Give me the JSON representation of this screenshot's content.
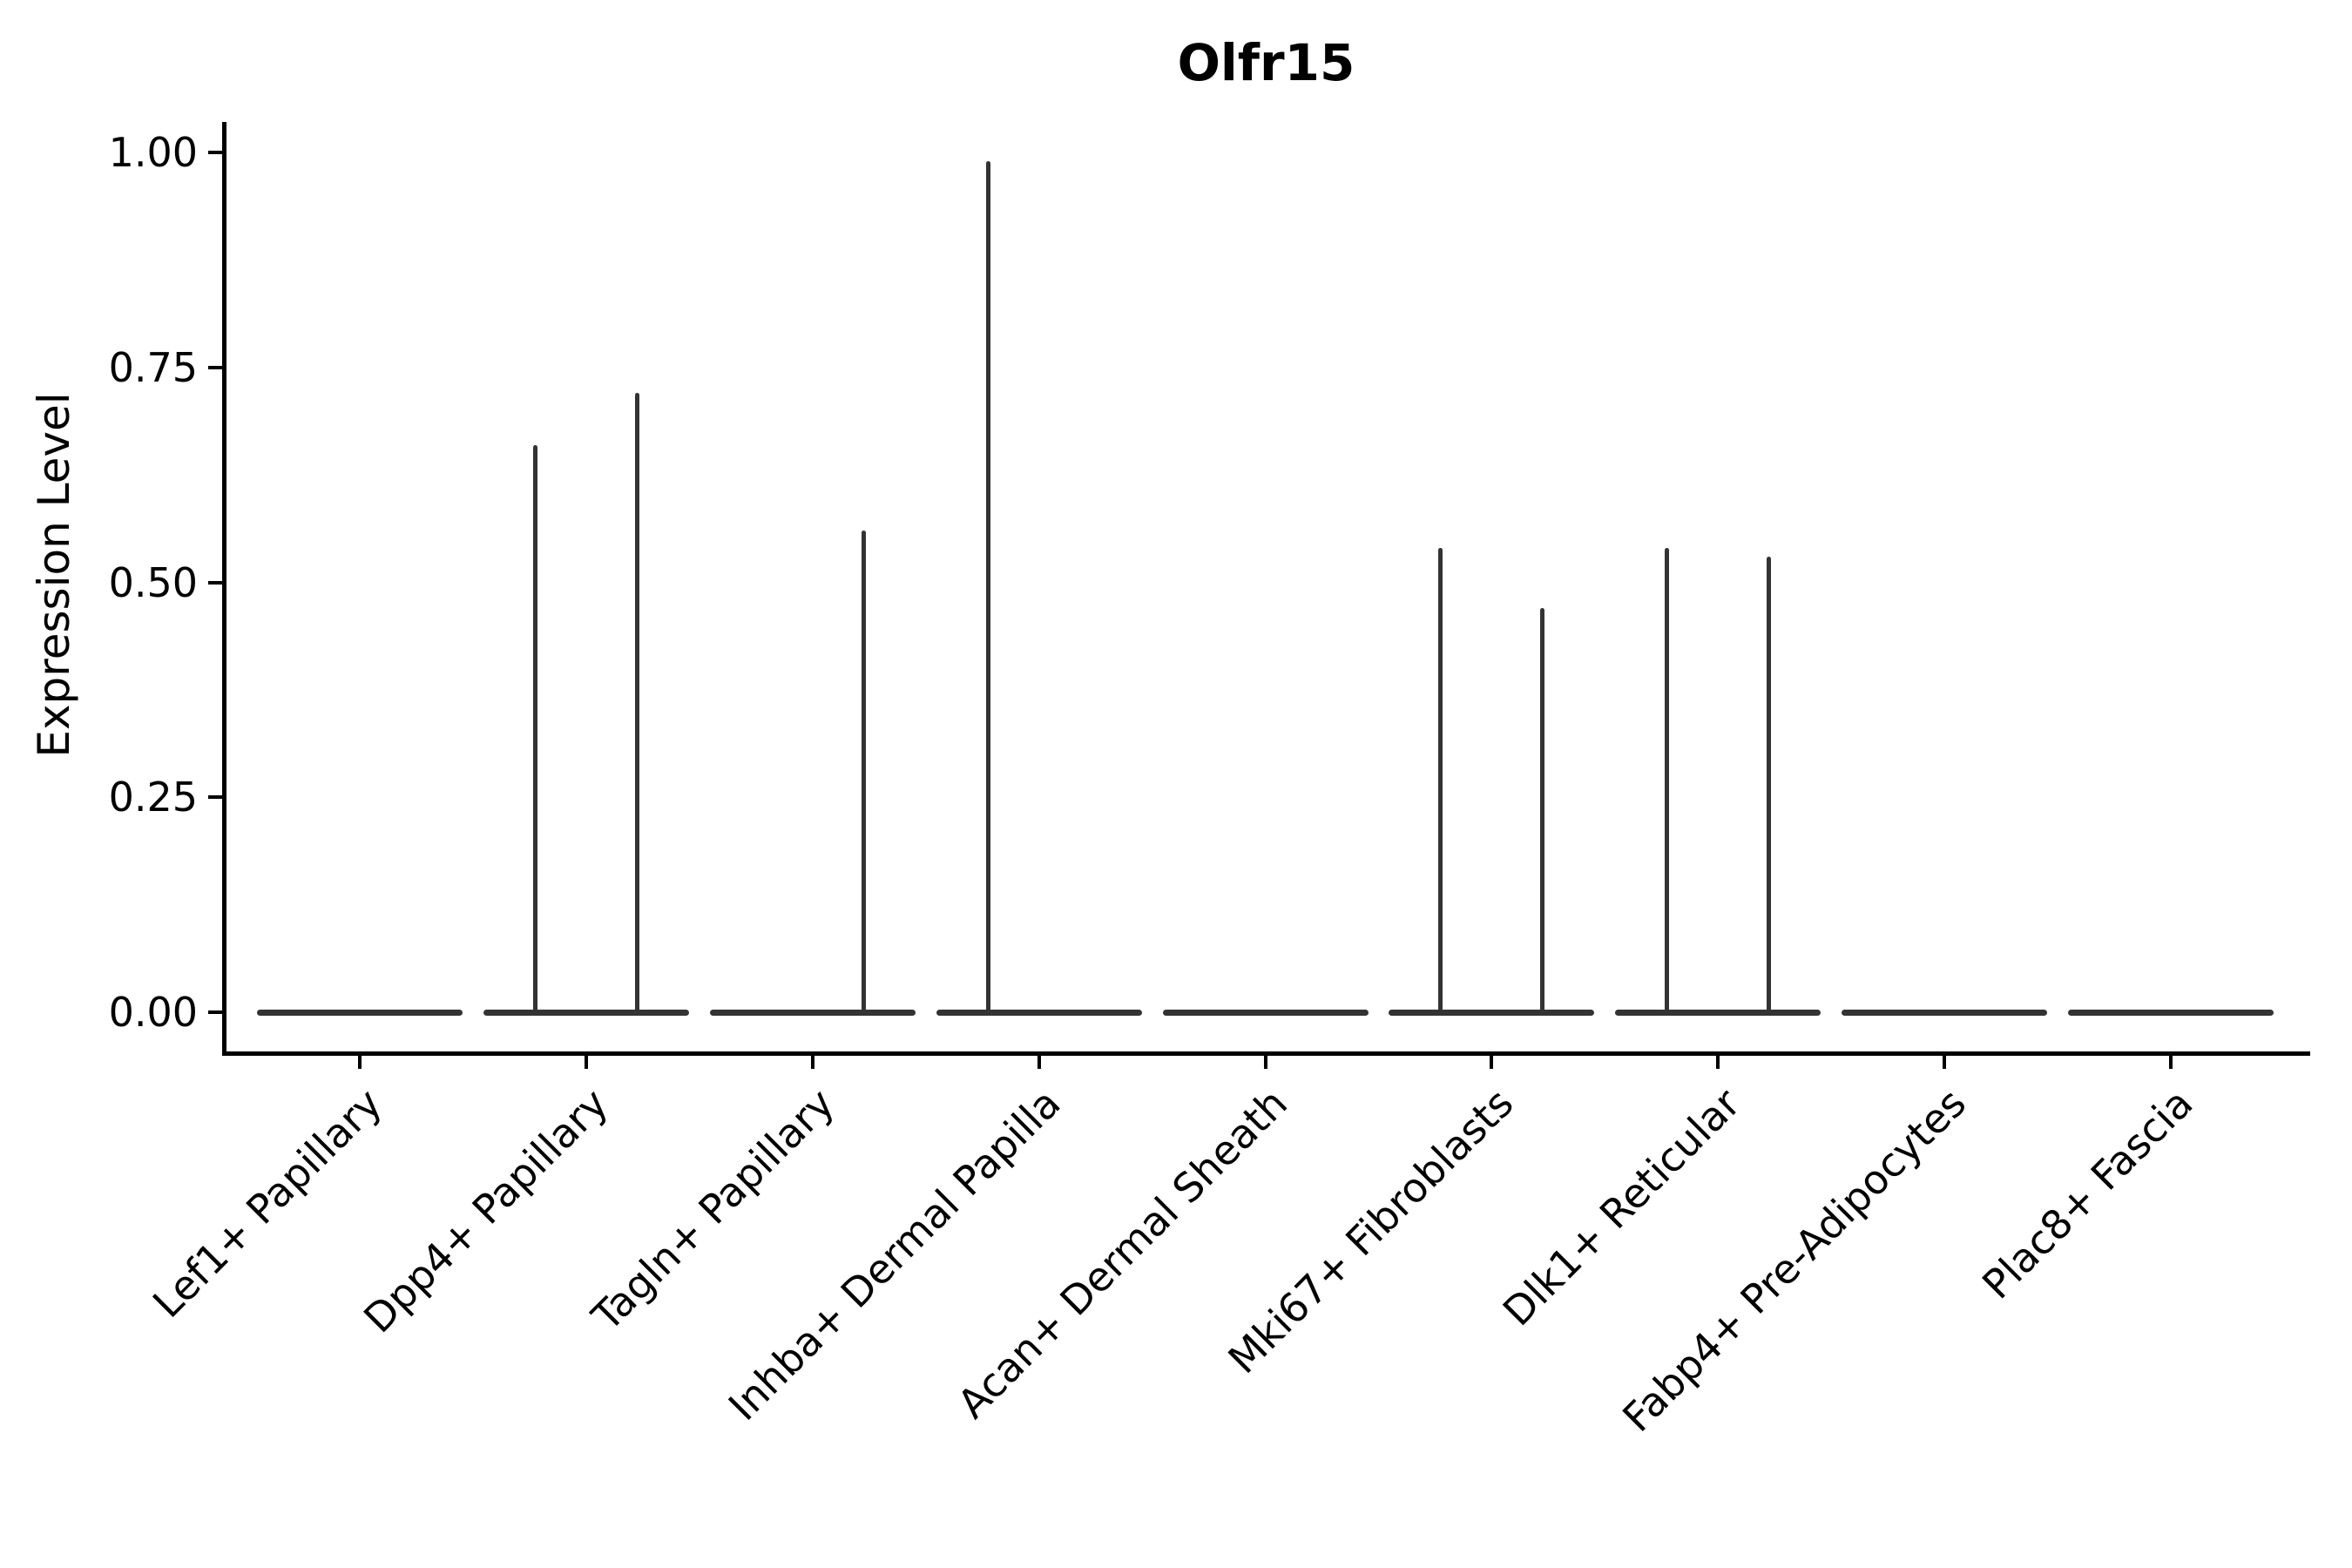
{
  "chart_data": {
    "type": "violin",
    "title": "Olfr15",
    "xlabel": "",
    "ylabel": "Expression Level",
    "ylim": [
      0,
      1.0
    ],
    "yticks": [
      0.0,
      0.25,
      0.5,
      0.75,
      1.0
    ],
    "ytick_labels": [
      "0.00",
      "0.25",
      "0.50",
      "0.75",
      "1.00"
    ],
    "grid": "off",
    "legend": "none",
    "style_note": "Seurat-style violin plot; expression almost entirely zero, violins collapse to flat bars at 0 with thin vertical spikes reaching the max expressing cells; each category holds a left and right sub-violin position",
    "categories": [
      "Lef1+ Papillary",
      "Dpp4+ Papillary",
      "Tagln+ Papillary",
      "Inhba+ Dermal Papilla",
      "Acan+ Dermal Sheath",
      "Mki67+ Fibroblasts",
      "Dlk1+ Reticular",
      "Fabp4+ Pre-Adipocytes",
      "Plac8+ Fascia"
    ],
    "series": [
      {
        "category": "Lef1+ Papillary",
        "baseline": 0.0,
        "spikes": []
      },
      {
        "category": "Dpp4+ Papillary",
        "baseline": 0.0,
        "spikes": [
          {
            "side": "left",
            "max": 0.66
          },
          {
            "side": "right",
            "max": 0.72
          }
        ]
      },
      {
        "category": "Tagln+ Papillary",
        "baseline": 0.0,
        "spikes": [
          {
            "side": "right",
            "max": 0.56
          }
        ]
      },
      {
        "category": "Inhba+ Dermal Papilla",
        "baseline": 0.0,
        "spikes": [
          {
            "side": "left",
            "max": 0.99
          }
        ]
      },
      {
        "category": "Acan+ Dermal Sheath",
        "baseline": 0.0,
        "spikes": []
      },
      {
        "category": "Mki67+ Fibroblasts",
        "baseline": 0.0,
        "spikes": [
          {
            "side": "left",
            "max": 0.54
          },
          {
            "side": "right",
            "max": 0.47
          }
        ]
      },
      {
        "category": "Dlk1+ Reticular",
        "baseline": 0.0,
        "spikes": [
          {
            "side": "left",
            "max": 0.54
          },
          {
            "side": "right",
            "max": 0.53
          }
        ]
      },
      {
        "category": "Fabp4+ Pre-Adipocytes",
        "baseline": 0.0,
        "spikes": []
      },
      {
        "category": "Plac8+ Fascia",
        "baseline": 0.0,
        "spikes": []
      }
    ],
    "colors": {
      "violin": "#333333",
      "axis": "#000000",
      "text": "#000000",
      "background": "#ffffff"
    }
  }
}
